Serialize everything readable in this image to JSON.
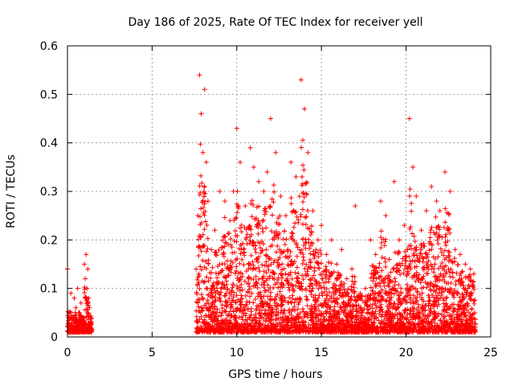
{
  "chart_data": {
    "type": "scatter",
    "title": "Day 186 of 2025, Rate Of TEC Index for receiver yell",
    "xlabel": "GPS time / hours",
    "ylabel": "ROTI / TECUs",
    "xlim": [
      0,
      25
    ],
    "ylim": [
      0,
      0.6
    ],
    "xticks": [
      0,
      5,
      10,
      15,
      20,
      25
    ],
    "yticks": [
      0,
      0.1,
      0.2,
      0.3,
      0.4,
      0.5,
      0.6
    ],
    "xtick_labels": [
      "0",
      "5",
      "10",
      "15",
      "20",
      "25"
    ],
    "ytick_labels": [
      "0",
      "0.1",
      "0.2",
      "0.3",
      "0.4",
      "0.5",
      "0.6"
    ],
    "grid": true,
    "marker": "+",
    "series": [
      {
        "name": "ROTI",
        "color": "#ff0000",
        "x": [
          0.0,
          0.1,
          0.2,
          0.3,
          0.4,
          0.5,
          0.6,
          0.7,
          0.8,
          0.9,
          1.0,
          1.05,
          1.1,
          1.15,
          1.2,
          1.25,
          1.3,
          1.35,
          7.6,
          7.7,
          7.8,
          7.9,
          8.0,
          8.1,
          8.2,
          8.3,
          8.5,
          8.7,
          9.0,
          9.3,
          9.6,
          9.8,
          10.0,
          10.2,
          10.5,
          10.8,
          11.0,
          11.3,
          11.6,
          11.8,
          12.0,
          12.3,
          12.6,
          12.9,
          13.2,
          13.5,
          13.8,
          14.0,
          14.2,
          14.5,
          14.8,
          15.0,
          15.3,
          15.6,
          15.9,
          16.2,
          16.5,
          16.8,
          17.0,
          17.3,
          17.6,
          17.9,
          18.2,
          18.5,
          18.8,
          19.0,
          19.3,
          19.6,
          19.9,
          20.2,
          20.4,
          20.6,
          20.9,
          21.2,
          21.5,
          21.8,
          22.0,
          22.3,
          22.6,
          22.9,
          23.2,
          23.5,
          23.8,
          24.0
        ],
        "y": [
          0.14,
          0.05,
          0.09,
          0.04,
          0.08,
          0.06,
          0.1,
          0.05,
          0.07,
          0.04,
          0.15,
          0.12,
          0.17,
          0.1,
          0.14,
          0.08,
          0.06,
          0.04,
          0.14,
          0.25,
          0.54,
          0.46,
          0.38,
          0.51,
          0.36,
          0.28,
          0.18,
          0.22,
          0.3,
          0.28,
          0.24,
          0.3,
          0.43,
          0.36,
          0.27,
          0.39,
          0.35,
          0.32,
          0.3,
          0.34,
          0.45,
          0.38,
          0.29,
          0.25,
          0.36,
          0.33,
          0.53,
          0.47,
          0.38,
          0.26,
          0.2,
          0.23,
          0.17,
          0.2,
          0.15,
          0.18,
          0.12,
          0.14,
          0.27,
          0.09,
          0.1,
          0.2,
          0.17,
          0.28,
          0.25,
          0.16,
          0.32,
          0.2,
          0.23,
          0.45,
          0.35,
          0.29,
          0.22,
          0.26,
          0.31,
          0.28,
          0.26,
          0.34,
          0.3,
          0.18,
          0.17,
          0.15,
          0.14,
          0.13
        ]
      }
    ]
  }
}
